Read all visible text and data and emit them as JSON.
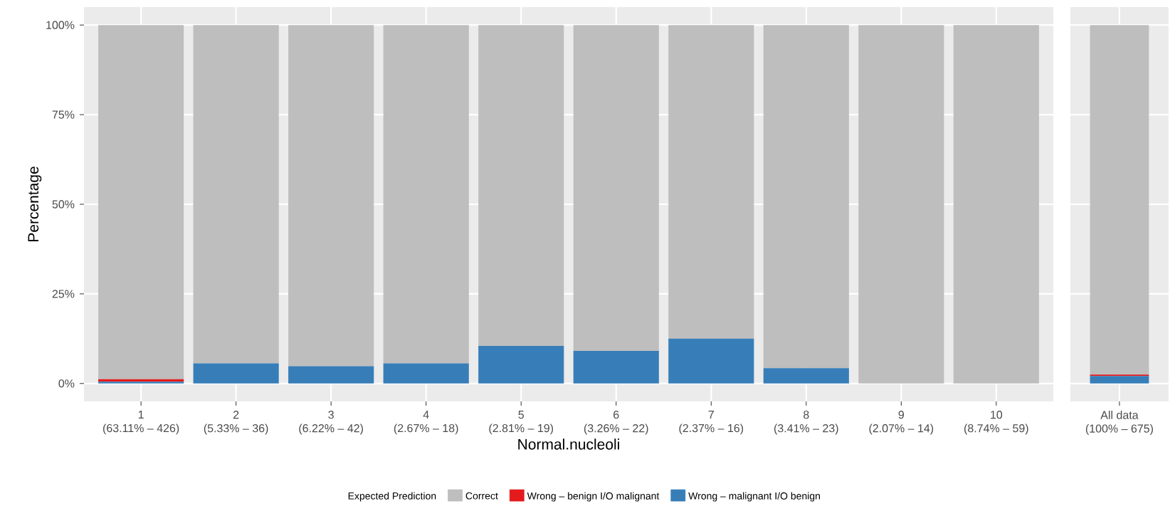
{
  "chart_data": [
    {
      "type": "bar",
      "stacked": true,
      "xlabel": "Normal.nucleoli",
      "ylabel": "Percentage",
      "legend_title": "Expected Prediction",
      "categories": [
        "1 (63.11% – 426)",
        "2 (5.33% – 36)",
        "3 (6.22% – 42)",
        "4 (2.67% – 18)",
        "5 (2.81% – 19)",
        "6 (3.26% – 22)",
        "7 (2.37% – 16)",
        "8 (3.41% – 23)",
        "9 (2.07% – 14)",
        "10 (8.74% – 59)"
      ],
      "series": [
        {
          "name": "Wrong – malignant I/O benign",
          "color": "#377eb8",
          "values": [
            0.5,
            5.6,
            4.8,
            5.6,
            10.5,
            9.1,
            12.5,
            4.3,
            0,
            0
          ]
        },
        {
          "name": "Wrong – benign I/O malignant",
          "color": "#e41a1c",
          "values": [
            0.7,
            0,
            0,
            0,
            0,
            0,
            0,
            0,
            0,
            0
          ]
        },
        {
          "name": "Correct",
          "color": "#bebebe",
          "values": [
            98.8,
            94.4,
            95.2,
            94.4,
            89.5,
            90.9,
            87.5,
            95.7,
            100,
            100
          ]
        }
      ],
      "ylim": [
        -5,
        105
      ],
      "yticks": [
        {
          "value": 0,
          "label": "0%"
        },
        {
          "value": 25,
          "label": "25%"
        },
        {
          "value": 50,
          "label": "50%"
        },
        {
          "value": 75,
          "label": "75%"
        },
        {
          "value": 100,
          "label": "100%"
        }
      ],
      "grid": true,
      "legend": "bottom"
    },
    {
      "type": "bar",
      "stacked": true,
      "categories": [
        "All data (100% – 675)"
      ],
      "series": [
        {
          "color": "#377eb8",
          "values": [
            2.1
          ]
        },
        {
          "color": "#e41a1c",
          "values": [
            0.4
          ]
        },
        {
          "color": "#bebebe",
          "values": [
            97.5
          ]
        }
      ],
      "ylim": [
        -5,
        105
      ],
      "yticks": [
        {
          "value": 0,
          "label": null
        },
        {
          "value": 25,
          "label": null
        },
        {
          "value": 50,
          "label": null
        },
        {
          "value": 75,
          "label": null
        },
        {
          "value": 100,
          "label": null
        }
      ],
      "grid": true,
      "tick_labels": "x"
    }
  ]
}
